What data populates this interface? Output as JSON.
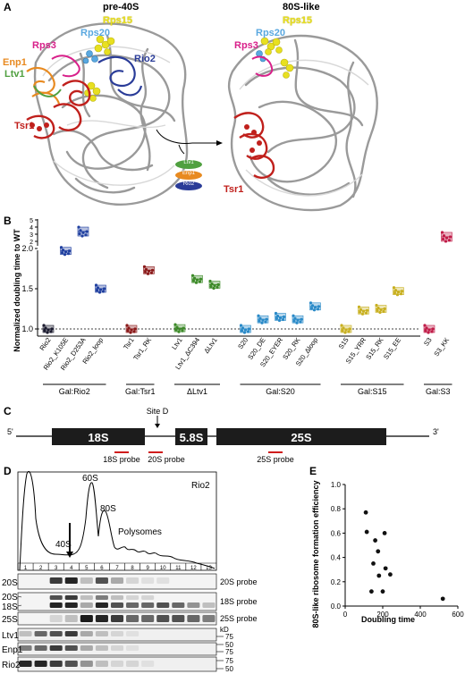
{
  "panel_letters": {
    "a": "A",
    "b": "B",
    "c": "C",
    "d": "D",
    "e": "E"
  },
  "panel_a": {
    "title_left": "pre-40S",
    "title_right": "80S-like",
    "labels_left": [
      "Rps15",
      "Rps20",
      "Rps3",
      "Enp1",
      "Ltv1",
      "Rio2",
      "Tsr1"
    ],
    "labels_right": [
      "Rps15",
      "Rps20",
      "Rps3",
      "Tsr1"
    ],
    "pill_labels": [
      "Ltv1",
      "Enp1",
      "Rio2"
    ],
    "colors": {
      "Rps15": "#e8e020",
      "Rps20": "#5aa8e0",
      "Rps3": "#d8208a",
      "Enp1": "#e88a20",
      "Ltv1": "#50a040",
      "Rio2": "#2a3c98",
      "Tsr1": "#c0201c"
    }
  },
  "panel_b": {
    "ylabel": "Normalized doubling time to WT",
    "yticks": [
      "1.0",
      "1.5",
      "2.0",
      "2",
      "3",
      "4",
      "5"
    ],
    "groups": [
      {
        "name": "Gal:Rio2",
        "conditions": [
          "Rio2",
          "Rio2_K105E",
          "Rio2_D253A",
          "Rio2_loop"
        ]
      },
      {
        "name": "Gal:Tsr1",
        "conditions": [
          "Tsr1",
          "Tsr1_RK"
        ]
      },
      {
        "name": "ΔLtv1",
        "conditions": [
          "Ltv1",
          "Ltv1_ΔC394",
          "ΔLtv1"
        ]
      },
      {
        "name": "Gal:S20",
        "conditions": [
          "S20",
          "S20_DE",
          "S20_EYER",
          "S20_RK",
          "S20_Δloop"
        ]
      },
      {
        "name": "Gal:S15",
        "conditions": [
          "S15",
          "S15_YRR",
          "S15_RK",
          "S15_EE"
        ]
      },
      {
        "name": "Gal:S3",
        "conditions": [
          "S3",
          "S3_KK"
        ]
      }
    ],
    "values": [
      1.0,
      1.97,
      3.37,
      1.5,
      1.0,
      1.73,
      1.01,
      1.62,
      1.55,
      1.0,
      1.12,
      1.15,
      1.12,
      1.28,
      1.0,
      1.23,
      1.25,
      1.47,
      1.0,
      2.63
    ],
    "colors": [
      "#1a1a2e",
      "#2040a0",
      "#2040a0",
      "#2040a0",
      "#8a1818",
      "#8a1818",
      "#3c8a28",
      "#3c8a28",
      "#3c8a28",
      "#2a8ac8",
      "#2a8ac8",
      "#2a8ac8",
      "#2a8ac8",
      "#2a8ac8",
      "#c8b020",
      "#c8b020",
      "#c8b020",
      "#c8b020",
      "#c01c48",
      "#c01c48"
    ]
  },
  "panel_c": {
    "prime5": "5'",
    "prime3": "3'",
    "site": "Site D",
    "segments": [
      "18S",
      "5.8S",
      "25S"
    ],
    "probes": [
      "18S probe",
      "20S probe",
      "25S probe"
    ]
  },
  "panel_d": {
    "strain": "Rio2",
    "peaks": [
      "60S",
      "80S",
      "40S",
      "Polysomes"
    ],
    "fractions": [
      "1",
      "2",
      "3",
      "4",
      "5",
      "6",
      "7",
      "8",
      "9",
      "10",
      "11",
      "12",
      "13"
    ],
    "northern_left": [
      "20S",
      "20S",
      "18S",
      "25S"
    ],
    "northern_right": [
      "20S probe",
      "18S probe",
      "25S probe"
    ],
    "western": [
      "Ltv1",
      "Enp1",
      "Rio2"
    ],
    "kd": "kD",
    "kd_marks": [
      "75",
      "50",
      "75",
      "75",
      "50"
    ]
  },
  "chart_data": {
    "type": "scatter",
    "xlabel": "Doubling time",
    "ylabel": "80S-like ribosome formation efficiency",
    "xlim": [
      0,
      600
    ],
    "ylim": [
      0,
      1.0
    ],
    "xticks": [
      "0",
      "200",
      "400",
      "600"
    ],
    "yticks": [
      "0.0",
      "0.2",
      "0.4",
      "0.6",
      "0.8",
      "1.0"
    ],
    "x": [
      110,
      115,
      140,
      150,
      160,
      175,
      180,
      200,
      210,
      215,
      240,
      520
    ],
    "y": [
      0.77,
      0.61,
      0.12,
      0.35,
      0.54,
      0.45,
      0.25,
      0.12,
      0.6,
      0.31,
      0.26,
      0.06
    ]
  }
}
